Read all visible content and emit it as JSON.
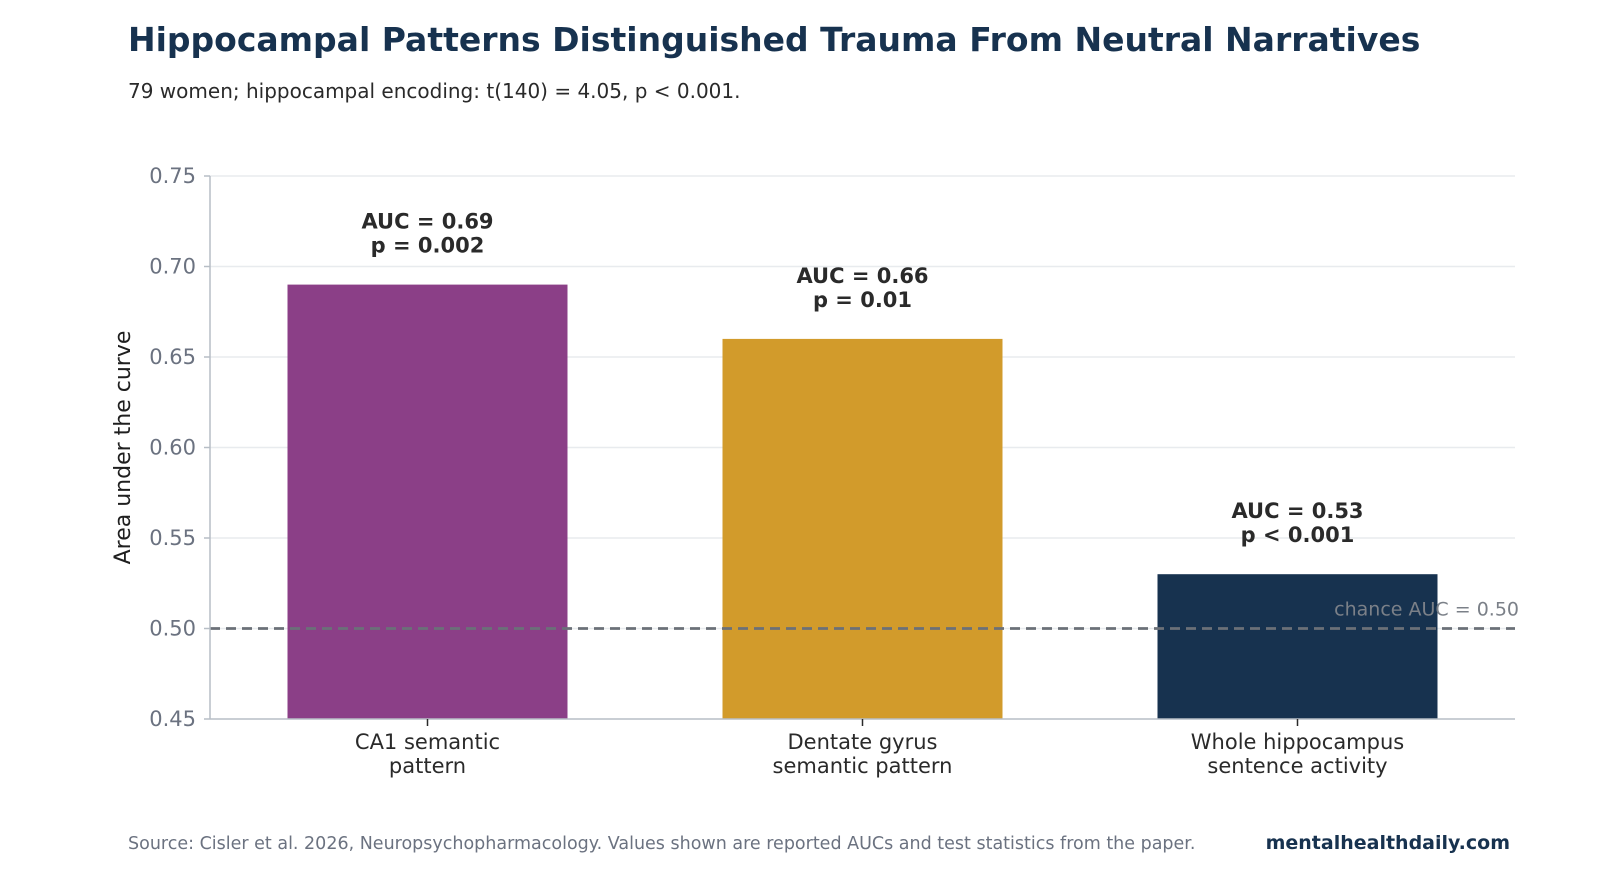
{
  "title": "Hippocampal Patterns Distinguished Trauma From Neutral Narratives",
  "subtitle": "79 women; hippocampal encoding: t(140) = 4.05, p < 0.001.",
  "footer": {
    "source": "Source: Cisler et al. 2026, Neuropsychopharmacology. Values shown are reported AUCs and test statistics from the paper.",
    "brand": "mentalhealthdaily.com"
  },
  "chart_data": {
    "type": "bar",
    "categories": [
      [
        "CA1 semantic",
        "pattern"
      ],
      [
        "Dentate gyrus",
        "semantic pattern"
      ],
      [
        "Whole hippocampus",
        "sentence activity"
      ]
    ],
    "values": [
      0.69,
      0.66,
      0.53
    ],
    "bar_labels": [
      [
        "AUC = 0.69",
        "p = 0.002"
      ],
      [
        "AUC = 0.66",
        "p = 0.01"
      ],
      [
        "AUC = 0.53",
        "p < 0.001"
      ]
    ],
    "colors": [
      "#8b3f87",
      "#d29b2b",
      "#17324f"
    ],
    "xlabel": "",
    "ylabel": "Area under the curve",
    "ylim": [
      0.45,
      0.75
    ],
    "yticks": [
      0.45,
      0.5,
      0.55,
      0.6,
      0.65,
      0.7,
      0.75
    ],
    "ytick_labels": [
      "0.45",
      "0.50",
      "0.55",
      "0.60",
      "0.65",
      "0.70",
      "0.75"
    ],
    "reference_line": {
      "value": 0.5,
      "label": "chance AUC = 0.50",
      "style": "dashed"
    },
    "grid": "horizontal",
    "legend": "none"
  }
}
